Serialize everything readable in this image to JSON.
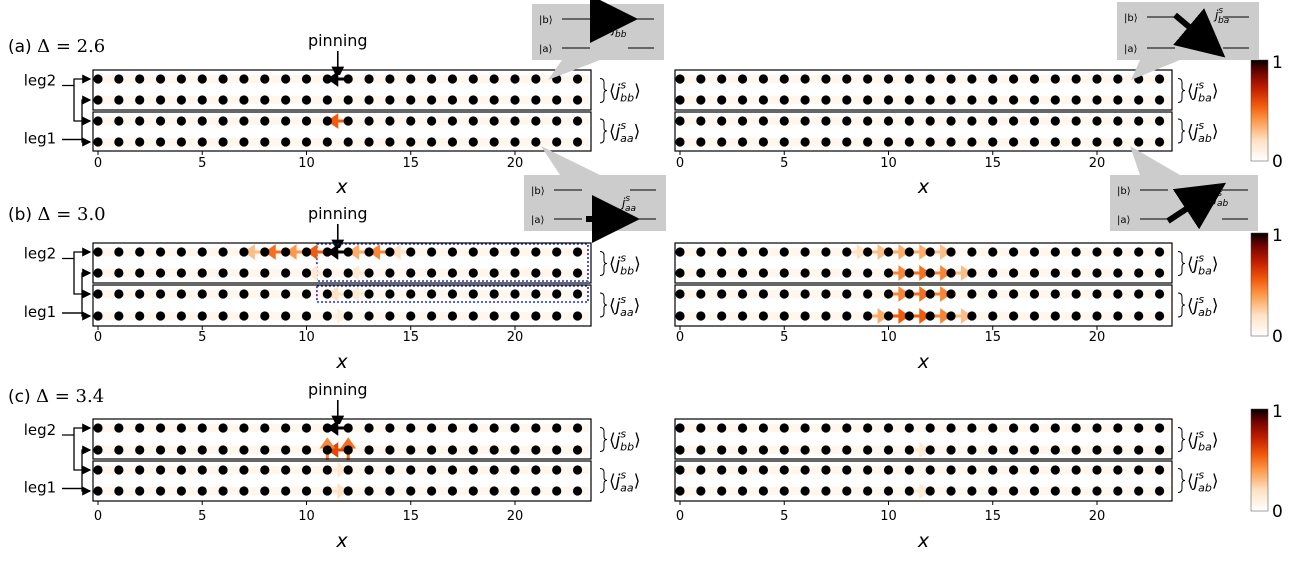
{
  "panels": [
    {
      "label": "(a)",
      "delta_symbol": "Δ",
      "delta_value": "= 2.6",
      "pinning_label": "pinning",
      "pinning_site": 11.5,
      "legs": [
        "leg2",
        "leg1"
      ],
      "left_plot": {
        "right_labels": [
          {
            "pre": "⟨",
            "sym": "j",
            "sup": "s",
            "sub": "bb",
            "post": "⟩"
          },
          {
            "pre": "⟨",
            "sym": "j",
            "sup": "s",
            "sub": "aa",
            "post": "⟩"
          }
        ],
        "arrows": [
          {
            "row": 0,
            "x": 11.5,
            "dir": "left",
            "level": 1.0
          },
          {
            "row": 2,
            "x": 11.5,
            "dir": "left",
            "level": 0.55
          }
        ],
        "highlight_boxes": []
      },
      "right_plot": {
        "right_labels": [
          {
            "pre": "⟨",
            "sym": "j",
            "sup": "s",
            "sub": "ba",
            "post": "⟩"
          },
          {
            "pre": "⟨",
            "sym": "j",
            "sup": "s",
            "sub": "ab",
            "post": "⟩"
          }
        ],
        "arrows": []
      },
      "callouts": [
        {
          "id": "bb",
          "label": "j",
          "sup": "s",
          "sub": "bb",
          "ket_b": "|b⟩",
          "ket_a": "|a⟩"
        },
        {
          "id": "aa",
          "label": "j",
          "sup": "s",
          "sub": "aa",
          "ket_b": "|b⟩",
          "ket_a": "|a⟩"
        },
        {
          "id": "ba",
          "label": "j",
          "sup": "s",
          "sub": "ba",
          "ket_b": "|b⟩",
          "ket_a": "|a⟩"
        },
        {
          "id": "ab",
          "label": "j",
          "sup": "s",
          "sub": "ab",
          "ket_b": "|b⟩",
          "ket_a": "|a⟩"
        }
      ]
    },
    {
      "label": "(b)",
      "delta_symbol": "Δ",
      "delta_value": "= 3.0",
      "pinning_label": "pinning",
      "pinning_site": 11.5,
      "legs": [
        "leg2",
        "leg1"
      ],
      "left_plot": {
        "right_labels": [
          {
            "pre": "⟨",
            "sym": "j",
            "sup": "s",
            "sub": "bb",
            "post": "⟩"
          },
          {
            "pre": "⟨",
            "sym": "j",
            "sup": "s",
            "sub": "aa",
            "post": "⟩"
          }
        ],
        "arrows": [
          {
            "row": 0,
            "x": 11.5,
            "dir": "left",
            "level": 1.0
          },
          {
            "row": 0,
            "x": 10.5,
            "dir": "left",
            "level": 0.55
          },
          {
            "row": 0,
            "x": 9.5,
            "dir": "left",
            "level": 0.4
          },
          {
            "row": 0,
            "x": 8.5,
            "dir": "left",
            "level": 0.5
          },
          {
            "row": 0,
            "x": 7.5,
            "dir": "left",
            "level": 0.3
          },
          {
            "row": 0,
            "x": 12.5,
            "dir": "left",
            "level": 0.35
          },
          {
            "row": 0,
            "x": 13.5,
            "dir": "left",
            "level": 0.45
          },
          {
            "row": 0,
            "x": 14.5,
            "dir": "left",
            "level": 0.2
          },
          {
            "row": 1,
            "x": 10.5,
            "dir": "left",
            "level": 0.15
          },
          {
            "row": 1,
            "x": 12.5,
            "dir": "left",
            "level": 0.15
          },
          {
            "row": 2,
            "x": 11.5,
            "dir": "left",
            "level": 0.2
          },
          {
            "row": 2,
            "x": 12.5,
            "dir": "left",
            "level": 0.15
          },
          {
            "row": 3,
            "x": 11.5,
            "dir": "right",
            "level": 0.12
          }
        ],
        "highlight_boxes": [
          {
            "from_row": 0,
            "to_row": 1,
            "x0": 10.5,
            "x1": 23.5
          },
          {
            "from_row": 2,
            "to_row": 2,
            "x0": 10.5,
            "x1": 23.5
          }
        ]
      },
      "right_plot": {
        "right_labels": [
          {
            "pre": "⟨",
            "sym": "j",
            "sup": "s",
            "sub": "ba",
            "post": "⟩"
          },
          {
            "pre": "⟨",
            "sym": "j",
            "sup": "s",
            "sub": "ab",
            "post": "⟩"
          }
        ],
        "arrows": [
          {
            "row": 0,
            "x": 8.5,
            "dir": "right",
            "level": 0.2
          },
          {
            "row": 0,
            "x": 9.5,
            "dir": "right",
            "level": 0.3
          },
          {
            "row": 0,
            "x": 10.5,
            "dir": "right",
            "level": 0.35
          },
          {
            "row": 0,
            "x": 11.5,
            "dir": "right",
            "level": 0.35
          },
          {
            "row": 0,
            "x": 12.5,
            "dir": "right",
            "level": 0.3
          },
          {
            "row": 1,
            "x": 10.5,
            "dir": "right",
            "level": 0.45
          },
          {
            "row": 1,
            "x": 11.5,
            "dir": "right",
            "level": 0.5
          },
          {
            "row": 1,
            "x": 12.5,
            "dir": "right",
            "level": 0.45
          },
          {
            "row": 1,
            "x": 13.5,
            "dir": "right",
            "level": 0.3
          },
          {
            "row": 2,
            "x": 10.5,
            "dir": "right",
            "level": 0.45
          },
          {
            "row": 2,
            "x": 11.5,
            "dir": "right",
            "level": 0.5
          },
          {
            "row": 2,
            "x": 12.5,
            "dir": "right",
            "level": 0.45
          },
          {
            "row": 3,
            "x": 9.5,
            "dir": "right",
            "level": 0.35
          },
          {
            "row": 3,
            "x": 10.5,
            "dir": "right",
            "level": 0.55
          },
          {
            "row": 3,
            "x": 11.5,
            "dir": "right",
            "level": 0.55
          },
          {
            "row": 3,
            "x": 12.5,
            "dir": "right",
            "level": 0.45
          },
          {
            "row": 3,
            "x": 13.5,
            "dir": "right",
            "level": 0.3
          }
        ]
      },
      "callouts": []
    },
    {
      "label": "(c)",
      "delta_symbol": "Δ",
      "delta_value": "= 3.4",
      "pinning_label": "pinning",
      "pinning_site": 11.5,
      "legs": [
        "leg2",
        "leg1"
      ],
      "left_plot": {
        "right_labels": [
          {
            "pre": "⟨",
            "sym": "j",
            "sup": "s",
            "sub": "bb",
            "post": "⟩"
          },
          {
            "pre": "⟨",
            "sym": "j",
            "sup": "s",
            "sub": "aa",
            "post": "⟩"
          }
        ],
        "arrows": [
          {
            "row": 0,
            "x": 11.5,
            "dir": "left",
            "level": 1.0
          },
          {
            "row": 1,
            "x": 11.5,
            "dir": "left",
            "level": 0.6
          },
          {
            "row": 1,
            "x": 11,
            "dir": "up",
            "level": 0.45
          },
          {
            "row": 1,
            "x": 12,
            "dir": "up",
            "level": 0.5
          },
          {
            "row": 2,
            "x": 11.5,
            "dir": "right",
            "level": 0.15
          },
          {
            "row": 3,
            "x": 11.5,
            "dir": "right",
            "level": 0.2
          }
        ],
        "highlight_boxes": []
      },
      "right_plot": {
        "right_labels": [
          {
            "pre": "⟨",
            "sym": "j",
            "sup": "s",
            "sub": "ba",
            "post": "⟩"
          },
          {
            "pre": "⟨",
            "sym": "j",
            "sup": "s",
            "sub": "ab",
            "post": "⟩"
          }
        ],
        "arrows": [
          {
            "row": 1,
            "x": 11.5,
            "dir": "right",
            "level": 0.15
          },
          {
            "row": 3,
            "x": 11.5,
            "dir": "right",
            "level": 0.15
          }
        ]
      },
      "callouts": []
    }
  ],
  "sites_per_leg": 24,
  "x_ticks": [
    "0",
    "5",
    "10",
    "15",
    "20"
  ],
  "x_tick_values": [
    0,
    5,
    10,
    15,
    20
  ],
  "x_axis_label": "x",
  "colorbar": {
    "max_label": "1",
    "min_label": "0"
  },
  "colors": {
    "site": "#000000",
    "colormap": [
      "#ffffff",
      "#fde2c4",
      "#fb9a4a",
      "#f25a0c",
      "#c01e00",
      "#6e0300",
      "#000000"
    ],
    "highlight_box": "#1f2bd6",
    "callout_bg": "#cccccc"
  }
}
